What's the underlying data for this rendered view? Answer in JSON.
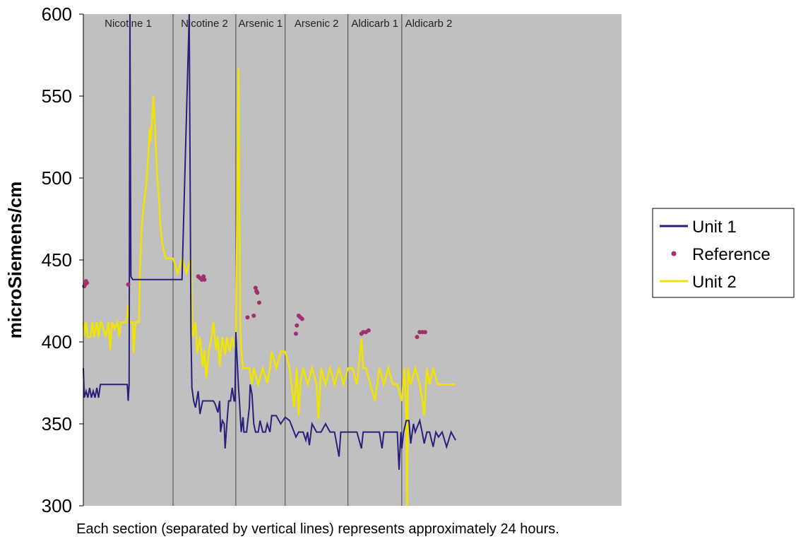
{
  "chart_data": {
    "type": "line",
    "ylabel": "microSiemens/cm",
    "xlabel": "",
    "ylim": [
      300,
      600
    ],
    "yticks": [
      300,
      350,
      400,
      450,
      500,
      550,
      600
    ],
    "xlim": [
      0,
      6
    ],
    "sections": [
      {
        "label": "Nicotine 1",
        "start": 0.0,
        "end": 1.0
      },
      {
        "label": "Nicotine 2",
        "start": 1.0,
        "end": 1.7
      },
      {
        "label": "Arsenic 1",
        "start": 1.7,
        "end": 2.25
      },
      {
        "label": "Arsenic 2",
        "start": 2.25,
        "end": 2.95
      },
      {
        "label": "Aldicarb 1",
        "start": 2.95,
        "end": 3.55
      },
      {
        "label": "Aldicarb 2",
        "start": 3.55,
        "end": 4.15
      }
    ],
    "caption": "Each section (separated by vertical lines) represents approximately 24 hours.",
    "legend": {
      "position": "right",
      "entries": [
        "Unit 1",
        "Reference",
        "Unit 2"
      ]
    },
    "colors": {
      "Unit 1": "#28207a",
      "Reference": "#a0306e",
      "Unit 2": "#f0e400",
      "plot_bg": "#c0c0c0"
    },
    "series": [
      {
        "name": "Unit 1",
        "style": "line",
        "points": [
          [
            0.0,
            384
          ],
          [
            0.01,
            366
          ],
          [
            0.03,
            370
          ],
          [
            0.05,
            366
          ],
          [
            0.07,
            372
          ],
          [
            0.09,
            366
          ],
          [
            0.11,
            370
          ],
          [
            0.13,
            366
          ],
          [
            0.15,
            372
          ],
          [
            0.17,
            366
          ],
          [
            0.19,
            374
          ],
          [
            0.25,
            374
          ],
          [
            0.35,
            374
          ],
          [
            0.45,
            374
          ],
          [
            0.49,
            374
          ],
          [
            0.5,
            364
          ],
          [
            0.51,
            374
          ],
          [
            0.515,
            492
          ],
          [
            0.52,
            600
          ],
          [
            0.53,
            440
          ],
          [
            0.55,
            438
          ],
          [
            1.1,
            438
          ],
          [
            1.18,
            600
          ],
          [
            1.2,
            405
          ],
          [
            1.21,
            372
          ],
          [
            1.23,
            364
          ],
          [
            1.25,
            360
          ],
          [
            1.28,
            370
          ],
          [
            1.3,
            356
          ],
          [
            1.33,
            364
          ],
          [
            1.4,
            364
          ],
          [
            1.45,
            364
          ],
          [
            1.47,
            362
          ],
          [
            1.5,
            357
          ],
          [
            1.52,
            364
          ],
          [
            1.53,
            345
          ],
          [
            1.55,
            352
          ],
          [
            1.57,
            350
          ],
          [
            1.58,
            335
          ],
          [
            1.6,
            350
          ],
          [
            1.62,
            364
          ],
          [
            1.64,
            364
          ],
          [
            1.66,
            372
          ],
          [
            1.68,
            364
          ],
          [
            1.69,
            364
          ],
          [
            1.7,
            406
          ],
          [
            1.71,
            394
          ],
          [
            1.73,
            372
          ],
          [
            1.74,
            364
          ],
          [
            1.76,
            345
          ],
          [
            1.78,
            354
          ],
          [
            1.79,
            345
          ],
          [
            1.82,
            345
          ],
          [
            1.85,
            360
          ],
          [
            1.86,
            374
          ],
          [
            1.88,
            368
          ],
          [
            1.9,
            350
          ],
          [
            1.92,
            345
          ],
          [
            1.95,
            345
          ],
          [
            1.97,
            352
          ],
          [
            2.0,
            345
          ],
          [
            2.03,
            345
          ],
          [
            2.05,
            350
          ],
          [
            2.08,
            345
          ],
          [
            2.1,
            355
          ],
          [
            2.15,
            355
          ],
          [
            2.2,
            350
          ],
          [
            2.25,
            354
          ],
          [
            2.3,
            352
          ],
          [
            2.35,
            345
          ],
          [
            2.37,
            342
          ],
          [
            2.4,
            345
          ],
          [
            2.45,
            345
          ],
          [
            2.48,
            340
          ],
          [
            2.5,
            345
          ],
          [
            2.52,
            337
          ],
          [
            2.55,
            350
          ],
          [
            2.6,
            345
          ],
          [
            2.65,
            345
          ],
          [
            2.7,
            350
          ],
          [
            2.75,
            345
          ],
          [
            2.8,
            345
          ],
          [
            2.85,
            330
          ],
          [
            2.87,
            345
          ],
          [
            2.9,
            345
          ],
          [
            2.95,
            345
          ],
          [
            3.0,
            345
          ],
          [
            3.05,
            345
          ],
          [
            3.1,
            335
          ],
          [
            3.12,
            345
          ],
          [
            3.15,
            345
          ],
          [
            3.2,
            345
          ],
          [
            3.3,
            345
          ],
          [
            3.33,
            335
          ],
          [
            3.35,
            345
          ],
          [
            3.4,
            345
          ],
          [
            3.45,
            345
          ],
          [
            3.5,
            345
          ],
          [
            3.52,
            322
          ],
          [
            3.54,
            345
          ],
          [
            3.55,
            335
          ],
          [
            3.57,
            345
          ],
          [
            3.6,
            352
          ],
          [
            3.63,
            352
          ],
          [
            3.65,
            338
          ],
          [
            3.68,
            350
          ],
          [
            3.7,
            345
          ],
          [
            3.75,
            352
          ],
          [
            3.78,
            344
          ],
          [
            3.8,
            338
          ],
          [
            3.83,
            345
          ],
          [
            3.86,
            345
          ],
          [
            3.9,
            336
          ],
          [
            3.93,
            345
          ],
          [
            3.96,
            342
          ],
          [
            4.0,
            345
          ],
          [
            4.05,
            336
          ],
          [
            4.1,
            345
          ],
          [
            4.15,
            340
          ]
        ]
      },
      {
        "name": "Reference",
        "style": "points",
        "points": [
          [
            0.01,
            434
          ],
          [
            0.02,
            435
          ],
          [
            0.03,
            437
          ],
          [
            0.04,
            436
          ],
          [
            0.5,
            435
          ],
          [
            1.28,
            440
          ],
          [
            1.3,
            439
          ],
          [
            1.32,
            438
          ],
          [
            1.34,
            440
          ],
          [
            1.35,
            438
          ],
          [
            1.83,
            415
          ],
          [
            1.9,
            416
          ],
          [
            1.92,
            433
          ],
          [
            1.93,
            431
          ],
          [
            1.94,
            430
          ],
          [
            1.96,
            424
          ],
          [
            2.37,
            405
          ],
          [
            2.38,
            410
          ],
          [
            2.4,
            416
          ],
          [
            2.42,
            415
          ],
          [
            2.44,
            414
          ],
          [
            3.1,
            405
          ],
          [
            3.12,
            406
          ],
          [
            3.15,
            406
          ],
          [
            3.18,
            407
          ],
          [
            3.72,
            403
          ],
          [
            3.75,
            406
          ],
          [
            3.78,
            406
          ],
          [
            3.81,
            406
          ]
        ]
      },
      {
        "name": "Unit 2",
        "style": "line",
        "points": [
          [
            0.0,
            412
          ],
          [
            0.01,
            403
          ],
          [
            0.03,
            412
          ],
          [
            0.05,
            403
          ],
          [
            0.08,
            403
          ],
          [
            0.1,
            412
          ],
          [
            0.12,
            403
          ],
          [
            0.15,
            412
          ],
          [
            0.17,
            403
          ],
          [
            0.19,
            412
          ],
          [
            0.2,
            412
          ],
          [
            0.25,
            403
          ],
          [
            0.28,
            412
          ],
          [
            0.3,
            395
          ],
          [
            0.32,
            412
          ],
          [
            0.35,
            408
          ],
          [
            0.38,
            412
          ],
          [
            0.4,
            403
          ],
          [
            0.42,
            412
          ],
          [
            0.45,
            412
          ],
          [
            0.48,
            412
          ],
          [
            0.5,
            423
          ],
          [
            0.52,
            412
          ],
          [
            0.55,
            412
          ],
          [
            0.56,
            393
          ],
          [
            0.58,
            412
          ],
          [
            0.6,
            412
          ],
          [
            0.62,
            412
          ],
          [
            0.63,
            442
          ],
          [
            0.65,
            470
          ],
          [
            0.67,
            482
          ],
          [
            0.7,
            495
          ],
          [
            0.72,
            510
          ],
          [
            0.74,
            530
          ],
          [
            0.75,
            522
          ],
          [
            0.77,
            540
          ],
          [
            0.78,
            550
          ],
          [
            0.8,
            530
          ],
          [
            0.82,
            505
          ],
          [
            0.84,
            490
          ],
          [
            0.86,
            470
          ],
          [
            0.88,
            460
          ],
          [
            0.9,
            455
          ],
          [
            0.92,
            451
          ],
          [
            0.95,
            451
          ],
          [
            1.0,
            451
          ],
          [
            1.05,
            442
          ],
          [
            1.1,
            451
          ],
          [
            1.15,
            442
          ],
          [
            1.2,
            451
          ],
          [
            1.21,
            420
          ],
          [
            1.22,
            403
          ],
          [
            1.25,
            412
          ],
          [
            1.27,
            393
          ],
          [
            1.3,
            403
          ],
          [
            1.33,
            385
          ],
          [
            1.35,
            395
          ],
          [
            1.37,
            378
          ],
          [
            1.4,
            395
          ],
          [
            1.43,
            403
          ],
          [
            1.45,
            412
          ],
          [
            1.48,
            395
          ],
          [
            1.5,
            403
          ],
          [
            1.52,
            385
          ],
          [
            1.55,
            403
          ],
          [
            1.58,
            392
          ],
          [
            1.6,
            403
          ],
          [
            1.63,
            394
          ],
          [
            1.66,
            403
          ],
          [
            1.68,
            397
          ],
          [
            1.7,
            398
          ],
          [
            1.73,
            567
          ],
          [
            1.74,
            470
          ],
          [
            1.75,
            410
          ],
          [
            1.76,
            395
          ],
          [
            1.78,
            384
          ],
          [
            1.8,
            384
          ],
          [
            1.85,
            384
          ],
          [
            1.88,
            374
          ],
          [
            1.9,
            384
          ],
          [
            1.95,
            374
          ],
          [
            2.0,
            384
          ],
          [
            2.05,
            375
          ],
          [
            2.08,
            384
          ],
          [
            2.1,
            394
          ],
          [
            2.15,
            384
          ],
          [
            2.2,
            394
          ],
          [
            2.25,
            394
          ],
          [
            2.3,
            384
          ],
          [
            2.35,
            360
          ],
          [
            2.38,
            384
          ],
          [
            2.4,
            355
          ],
          [
            2.42,
            375
          ],
          [
            2.45,
            384
          ],
          [
            2.5,
            374
          ],
          [
            2.55,
            384
          ],
          [
            2.6,
            374
          ],
          [
            2.62,
            353
          ],
          [
            2.65,
            384
          ],
          [
            2.7,
            374
          ],
          [
            2.75,
            384
          ],
          [
            2.8,
            374
          ],
          [
            2.85,
            384
          ],
          [
            2.9,
            374
          ],
          [
            2.95,
            384
          ],
          [
            3.0,
            384
          ],
          [
            3.05,
            374
          ],
          [
            3.1,
            402
          ],
          [
            3.12,
            384
          ],
          [
            3.15,
            384
          ],
          [
            3.2,
            374
          ],
          [
            3.25,
            364
          ],
          [
            3.3,
            384
          ],
          [
            3.35,
            374
          ],
          [
            3.4,
            384
          ],
          [
            3.45,
            374
          ],
          [
            3.5,
            374
          ],
          [
            3.55,
            364
          ],
          [
            3.58,
            384
          ],
          [
            3.6,
            355
          ],
          [
            3.61,
            300
          ],
          [
            3.62,
            384
          ],
          [
            3.65,
            374
          ],
          [
            3.7,
            384
          ],
          [
            3.75,
            374
          ],
          [
            3.78,
            364
          ],
          [
            3.8,
            355
          ],
          [
            3.83,
            384
          ],
          [
            3.86,
            374
          ],
          [
            3.9,
            384
          ],
          [
            3.95,
            374
          ],
          [
            4.0,
            374
          ],
          [
            4.1,
            374
          ],
          [
            4.15,
            374
          ]
        ]
      }
    ]
  }
}
